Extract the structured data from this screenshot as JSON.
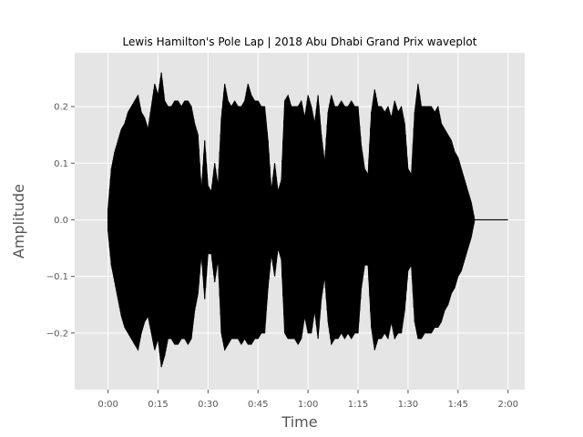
{
  "chart_data": {
    "type": "area",
    "title": "Lewis Hamilton's Pole Lap | 2018 Abu Dhabi Grand Prix waveplot",
    "xlabel": "Time",
    "ylabel": "Amplitude",
    "x_unit": "seconds",
    "xlim": [
      -10,
      125
    ],
    "ylim": [
      -0.3,
      0.295
    ],
    "x_ticks": [
      0,
      15,
      30,
      45,
      60,
      75,
      90,
      105,
      120
    ],
    "x_tick_labels": [
      "0:00",
      "0:15",
      "0:30",
      "0:45",
      "1:00",
      "1:15",
      "1:30",
      "1:45",
      "2:00"
    ],
    "y_ticks": [
      -0.2,
      -0.1,
      0.0,
      0.1,
      0.2
    ],
    "y_tick_labels": [
      "−0.2",
      "−0.1",
      "0.0",
      "0.1",
      "0.2"
    ],
    "grid": true,
    "series": [
      {
        "color": "#000000",
        "envelope": {
          "x": [
            0,
            1,
            2,
            3,
            4,
            5,
            6,
            7,
            8,
            9,
            10,
            11,
            12,
            13,
            14,
            15,
            16,
            17,
            18,
            19,
            20,
            21,
            22,
            23,
            24,
            25,
            26,
            27,
            28,
            29,
            30,
            31,
            32,
            33,
            34,
            35,
            36,
            37,
            38,
            39,
            40,
            41,
            42,
            43,
            44,
            45,
            46,
            47,
            48,
            49,
            50,
            51,
            52,
            53,
            54,
            55,
            56,
            57,
            58,
            59,
            60,
            61,
            62,
            63,
            64,
            65,
            66,
            67,
            68,
            69,
            70,
            71,
            72,
            73,
            74,
            75,
            76,
            77,
            78,
            79,
            80,
            81,
            82,
            83,
            84,
            85,
            86,
            87,
            88,
            89,
            90,
            91,
            92,
            93,
            94,
            95,
            96,
            97,
            98,
            99,
            100,
            101,
            102,
            103,
            104,
            105,
            106,
            107,
            108,
            109,
            110
          ],
          "upper": [
            0.02,
            0.09,
            0.12,
            0.14,
            0.16,
            0.17,
            0.19,
            0.2,
            0.21,
            0.22,
            0.19,
            0.18,
            0.16,
            0.2,
            0.24,
            0.22,
            0.26,
            0.21,
            0.2,
            0.2,
            0.21,
            0.21,
            0.2,
            0.21,
            0.21,
            0.2,
            0.17,
            0.15,
            0.05,
            0.14,
            0.06,
            0.05,
            0.1,
            0.06,
            0.18,
            0.24,
            0.21,
            0.2,
            0.21,
            0.2,
            0.2,
            0.21,
            0.24,
            0.22,
            0.21,
            0.21,
            0.2,
            0.2,
            0.14,
            0.05,
            0.1,
            0.05,
            0.07,
            0.21,
            0.22,
            0.2,
            0.2,
            0.2,
            0.21,
            0.18,
            0.22,
            0.2,
            0.17,
            0.22,
            0.15,
            0.1,
            0.19,
            0.22,
            0.2,
            0.2,
            0.21,
            0.2,
            0.2,
            0.21,
            0.2,
            0.2,
            0.13,
            0.09,
            0.08,
            0.19,
            0.23,
            0.2,
            0.2,
            0.19,
            0.2,
            0.18,
            0.21,
            0.19,
            0.2,
            0.17,
            0.09,
            0.08,
            0.19,
            0.24,
            0.2,
            0.2,
            0.2,
            0.2,
            0.19,
            0.2,
            0.17,
            0.16,
            0.15,
            0.14,
            0.12,
            0.11,
            0.09,
            0.07,
            0.05,
            0.03,
            0.0
          ],
          "lower": [
            -0.02,
            -0.08,
            -0.11,
            -0.14,
            -0.17,
            -0.19,
            -0.2,
            -0.21,
            -0.22,
            -0.23,
            -0.2,
            -0.18,
            -0.17,
            -0.2,
            -0.23,
            -0.21,
            -0.26,
            -0.24,
            -0.21,
            -0.21,
            -0.22,
            -0.22,
            -0.21,
            -0.21,
            -0.22,
            -0.21,
            -0.16,
            -0.13,
            -0.06,
            -0.14,
            -0.06,
            -0.06,
            -0.11,
            -0.07,
            -0.2,
            -0.23,
            -0.22,
            -0.21,
            -0.21,
            -0.21,
            -0.22,
            -0.21,
            -0.22,
            -0.22,
            -0.21,
            -0.21,
            -0.2,
            -0.2,
            -0.12,
            -0.06,
            -0.1,
            -0.05,
            -0.07,
            -0.2,
            -0.21,
            -0.21,
            -0.21,
            -0.22,
            -0.21,
            -0.17,
            -0.2,
            -0.2,
            -0.16,
            -0.21,
            -0.14,
            -0.1,
            -0.18,
            -0.22,
            -0.21,
            -0.21,
            -0.2,
            -0.21,
            -0.2,
            -0.21,
            -0.2,
            -0.2,
            -0.12,
            -0.08,
            -0.08,
            -0.19,
            -0.23,
            -0.21,
            -0.21,
            -0.2,
            -0.21,
            -0.18,
            -0.21,
            -0.2,
            -0.2,
            -0.16,
            -0.09,
            -0.08,
            -0.18,
            -0.21,
            -0.21,
            -0.2,
            -0.2,
            -0.2,
            -0.19,
            -0.19,
            -0.18,
            -0.16,
            -0.15,
            -0.13,
            -0.12,
            -0.1,
            -0.09,
            -0.07,
            -0.05,
            -0.03,
            0.0
          ]
        },
        "silence": {
          "x": [
            110,
            120
          ],
          "y": 0.0
        }
      }
    ]
  }
}
